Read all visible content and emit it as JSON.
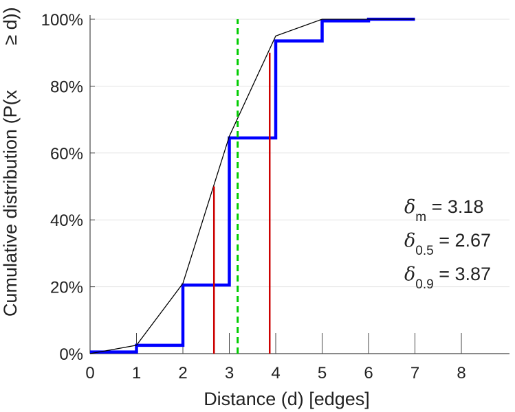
{
  "chart_data": {
    "type": "line",
    "title": "",
    "xlabel": "Distance (d) [edges]",
    "ylabel_main": "Cumulative distribution (P(x",
    "ylabel_tail": "≥ d))",
    "xlim": [
      0,
      9
    ],
    "ylim": [
      0,
      100
    ],
    "x_ticks": [
      0,
      1,
      2,
      3,
      4,
      5,
      6,
      7,
      8
    ],
    "y_ticks": [
      0,
      20,
      40,
      60,
      80,
      100
    ],
    "y_tick_labels": [
      "0%",
      "20%",
      "40%",
      "60%",
      "80%",
      "100%"
    ],
    "grid": "horizontal",
    "series": [
      {
        "name": "empirical cumulative distribution (step)",
        "style": "step",
        "color": "#0000ff",
        "x": [
          0,
          1,
          2,
          3,
          4,
          5,
          6,
          7
        ],
        "values": [
          0.5,
          2.5,
          20.5,
          64.5,
          93.5,
          99.5,
          100,
          100
        ]
      },
      {
        "name": "interpolated cumulative distribution",
        "style": "line",
        "color": "#000000",
        "x": [
          0,
          1,
          2,
          3,
          4,
          5,
          6,
          7
        ],
        "values": [
          0,
          2.5,
          21,
          65,
          95,
          100,
          100,
          100
        ]
      }
    ],
    "vlines": [
      {
        "name": "median distance",
        "x": 2.67,
        "y_top": 50,
        "color": "#cc0000",
        "dash": false
      },
      {
        "name": "90th percentile distance",
        "x": 3.87,
        "y_top": 90,
        "color": "#cc0000",
        "dash": false
      },
      {
        "name": "mean distance",
        "x": 3.18,
        "y_top": 100,
        "color": "#00cc00",
        "dash": true
      }
    ],
    "annotations": [
      {
        "symbol": "δ",
        "subscript": "m",
        "text": " = 3.18"
      },
      {
        "symbol": "δ",
        "subscript": "0.5",
        "text": " = 2.67"
      },
      {
        "symbol": "δ",
        "subscript": "0.9",
        "text": " = 3.87"
      }
    ]
  }
}
